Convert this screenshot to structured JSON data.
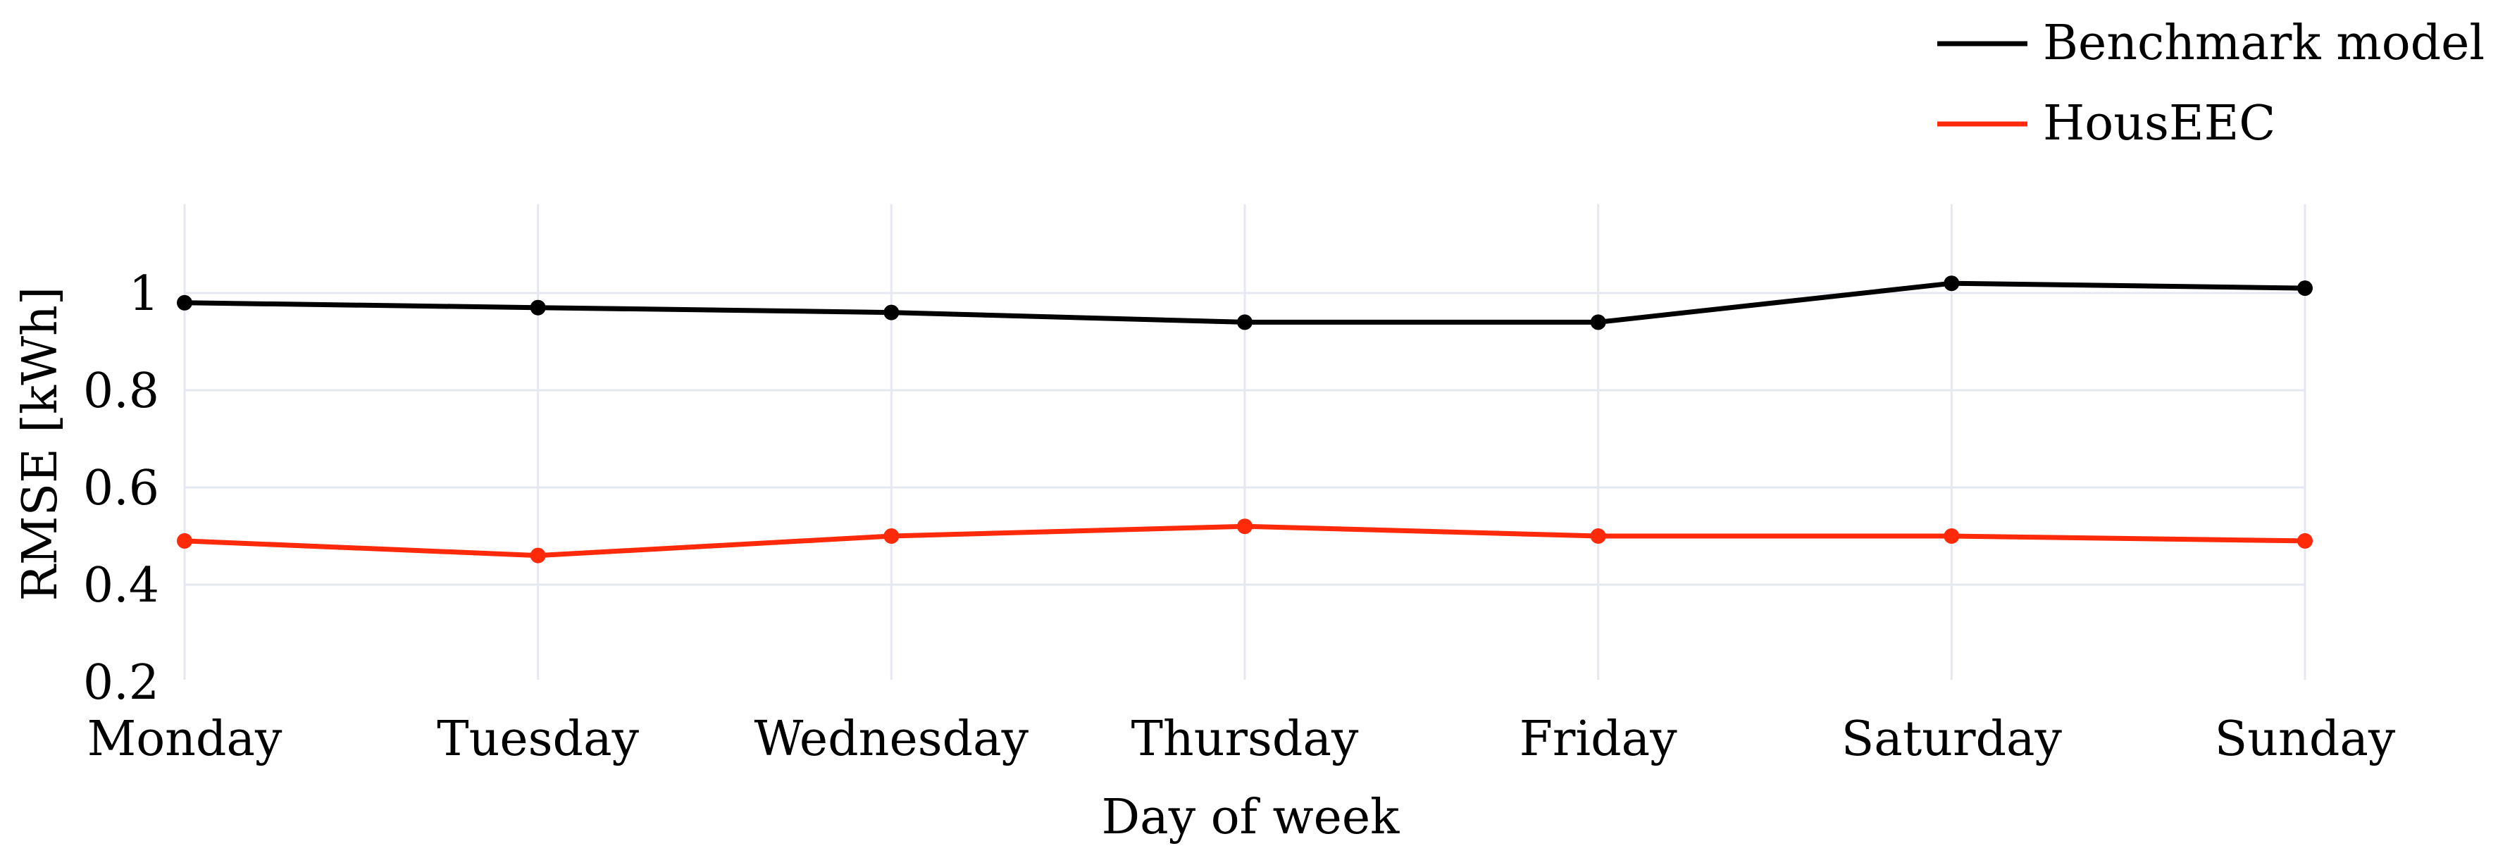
{
  "chart_data": {
    "type": "line",
    "title": "",
    "xlabel": "Day of week",
    "ylabel": "RMSE [kWh]",
    "categories": [
      "Monday",
      "Tuesday",
      "Wednesday",
      "Thursday",
      "Friday",
      "Saturday",
      "Sunday"
    ],
    "ylim": [
      0.2,
      1.1
    ],
    "yticks": [
      0.2,
      0.4,
      0.6,
      0.8,
      1
    ],
    "ytick_labels": [
      "0.2",
      "0.4",
      "0.6",
      "0.8",
      "1"
    ],
    "grid": true,
    "legend_position": "top-right",
    "series": [
      {
        "name": "Benchmark model",
        "color": "#000000",
        "values": [
          0.98,
          0.97,
          0.96,
          0.94,
          0.94,
          1.02,
          1.01
        ]
      },
      {
        "name": "HousEEC",
        "color": "#ff2a0a",
        "values": [
          0.49,
          0.46,
          0.5,
          0.52,
          0.5,
          0.5,
          0.49
        ]
      }
    ]
  }
}
